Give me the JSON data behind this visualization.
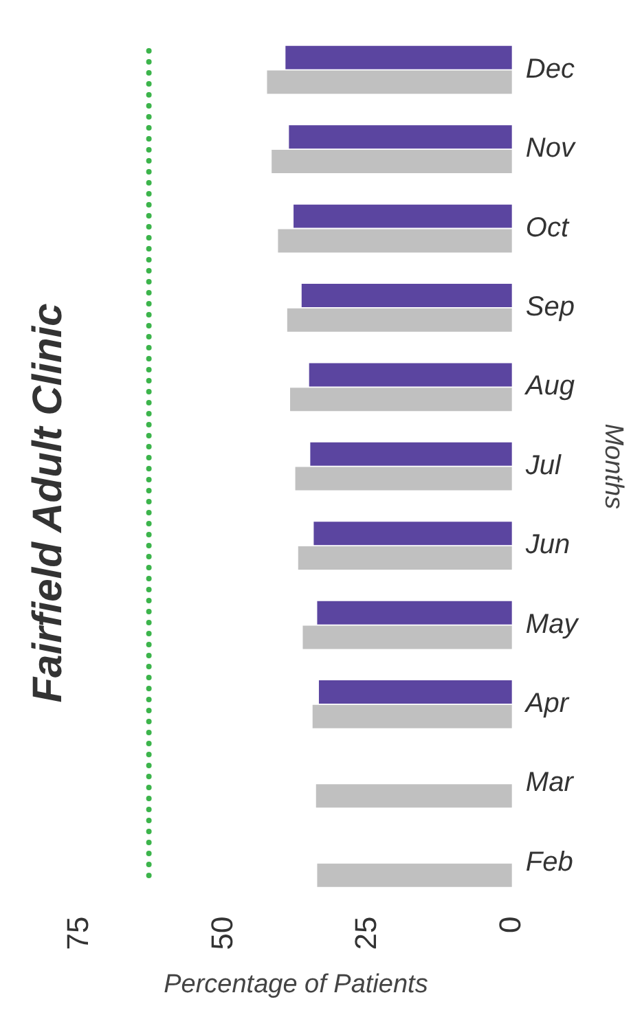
{
  "chart_data": {
    "type": "bar",
    "orientation": "horizontal",
    "title": "Fairfield Adult Clinic",
    "xlabel": "Percentage of Patients",
    "ylabel": "Months",
    "categories": [
      "Dec",
      "Nov",
      "Oct",
      "Sep",
      "Aug",
      "Jul",
      "Jun",
      "May",
      "Apr",
      "Mar",
      "Feb"
    ],
    "series": [
      {
        "color": "#5b45a0",
        "values": [
          39.3,
          38.7,
          37.9,
          36.5,
          35.2,
          35,
          34.4,
          33.8,
          33.5,
          null,
          null
        ]
      },
      {
        "color": "#c0c0c0",
        "values": [
          42.5,
          41.7,
          40.6,
          39,
          38.5,
          37.6,
          37.1,
          36.3,
          34.6,
          34,
          33.8
        ]
      }
    ],
    "xlim": [
      75,
      0
    ],
    "xticks": [
      75,
      50,
      25,
      0
    ],
    "grid": false,
    "legend": false,
    "ref_lines": [
      {
        "axis": "x",
        "value": 63,
        "color": "#3cb44b",
        "line_style": "dotted"
      }
    ]
  }
}
